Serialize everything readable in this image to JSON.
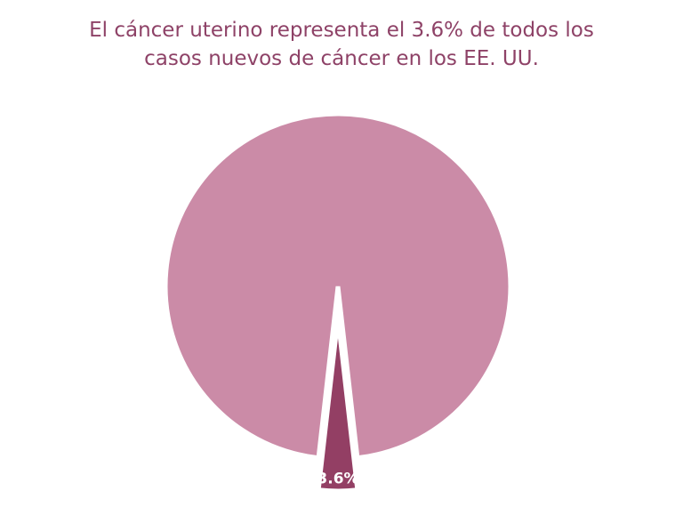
{
  "chart_data": {
    "type": "pie",
    "title": "El cáncer uterino representa el 3.6% de todos los casos nuevos de cáncer en los EE. UU.",
    "slices": [
      {
        "label": "",
        "value": 96.4,
        "color": "#cb8ba7"
      },
      {
        "label": "3.6%",
        "value": 3.6,
        "color": "#933f64",
        "exploded": true
      }
    ],
    "legend": "none"
  }
}
